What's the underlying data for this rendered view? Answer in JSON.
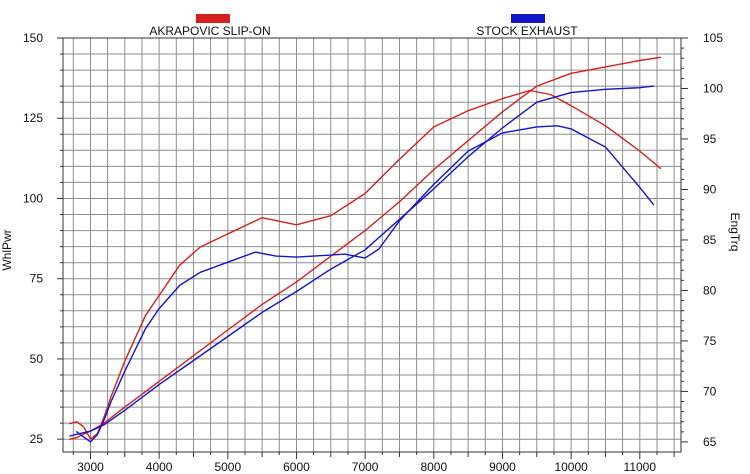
{
  "chart_data": {
    "type": "line",
    "x_ticks": [
      3000,
      4000,
      5000,
      6000,
      7000,
      8000,
      9000,
      10000,
      11000
    ],
    "y_left": {
      "label": "WhlPwr",
      "ticks": [
        25,
        50,
        75,
        100,
        125,
        150
      ],
      "range": [
        21,
        150
      ]
    },
    "y_right": {
      "label": "EngTrq",
      "ticks": [
        65,
        70,
        75,
        80,
        85,
        90,
        95,
        100,
        105
      ],
      "range": [
        64,
        105
      ]
    },
    "x_range": [
      2600,
      11600
    ],
    "grid": true,
    "legend_position": "top",
    "series": [
      {
        "name": "AKRAPOVIC SLIP-ON",
        "color": "#d42020",
        "power": {
          "x": [
            2700,
            2800,
            2900,
            3000,
            3200,
            3500,
            4000,
            4500,
            5000,
            5500,
            6000,
            6500,
            7000,
            7500,
            8000,
            8500,
            9000,
            9500,
            10000,
            10500,
            11000,
            11300
          ],
          "y": [
            25,
            25.5,
            26.5,
            27.5,
            30,
            35,
            43,
            51,
            59,
            67,
            74,
            82,
            90,
            99,
            109,
            118,
            127,
            135,
            139,
            141,
            143,
            144
          ]
        },
        "torque": {
          "x": [
            2700,
            2800,
            2900,
            3000,
            3100,
            3200,
            3300,
            3500,
            3800,
            4000,
            4300,
            4600,
            5000,
            5500,
            6000,
            6500,
            7000,
            7500,
            8000,
            8500,
            9000,
            9400,
            9700,
            10000,
            10500,
            11000,
            11300
          ],
          "y": [
            66.8,
            67,
            66.5,
            65.3,
            65.8,
            67.5,
            69.5,
            73,
            77.5,
            79.5,
            82.5,
            84.3,
            85.6,
            87.2,
            86.5,
            87.4,
            89.6,
            93,
            96.2,
            97.8,
            99,
            99.8,
            99.4,
            98.3,
            96.3,
            93.8,
            92.1
          ]
        }
      },
      {
        "name": "STOCK EXHAUST",
        "color": "#1515c8",
        "power": {
          "x": [
            2700,
            2800,
            2900,
            3000,
            3200,
            3500,
            4000,
            4500,
            5000,
            5500,
            6000,
            6500,
            7000,
            7500,
            8000,
            8500,
            9000,
            9500,
            10000,
            10500,
            11000,
            11200
          ],
          "y": [
            26,
            26.5,
            27,
            27.5,
            29.5,
            34,
            42,
            49.5,
            57,
            64.5,
            71,
            78,
            84,
            93.5,
            103,
            113,
            122,
            130,
            133,
            134,
            134.5,
            135
          ]
        },
        "torque": {
          "x": [
            2800,
            2900,
            3000,
            3100,
            3200,
            3300,
            3500,
            3800,
            4000,
            4300,
            4600,
            5000,
            5400,
            5700,
            6000,
            6500,
            6700,
            7000,
            7200,
            7500,
            8000,
            8500,
            9000,
            9500,
            9800,
            10000,
            10500,
            11000,
            11200
          ],
          "y": [
            66,
            65.5,
            65,
            65.7,
            67.2,
            69,
            72,
            76.2,
            78.2,
            80.5,
            81.8,
            82.8,
            83.8,
            83.4,
            83.3,
            83.5,
            83.6,
            83.2,
            84.1,
            86.9,
            90.5,
            93.8,
            95.6,
            96.2,
            96.3,
            96,
            94.2,
            90.2,
            88.5
          ]
        }
      }
    ]
  }
}
